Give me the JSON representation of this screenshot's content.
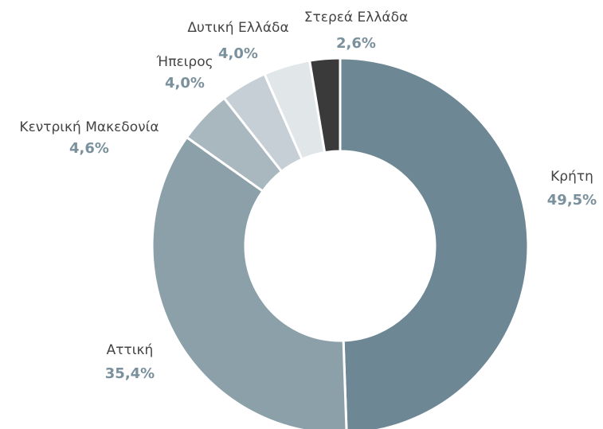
{
  "chart_data": {
    "type": "donut",
    "categories": [
      "Κρήτη",
      "Αττική",
      "Κεντρική Μακεδονία",
      "Ήπειρος",
      "Δυτική Ελλάδα",
      "Στερεά Ελλάδα"
    ],
    "values": [
      49.5,
      35.4,
      4.6,
      4.0,
      4.0,
      2.6
    ],
    "value_labels": [
      "49,5%",
      "35,4%",
      "4,6%",
      "4,0%",
      "4,0%",
      "2,6%"
    ],
    "colors": [
      "#6e8794",
      "#8ca0aa",
      "#a9b7bf",
      "#c5cfd5",
      "#e1e6e9",
      "#3a3a3a"
    ]
  }
}
